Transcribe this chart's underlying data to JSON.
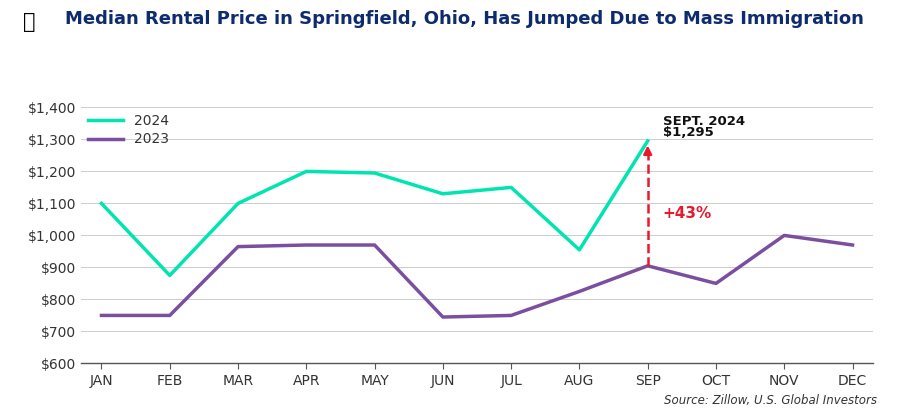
{
  "title": "Median Rental Price in Springfield, Ohio, Has Jumped Due to Mass Immigration",
  "title_color": "#0d2b6e",
  "title_fontsize": 13.0,
  "months": [
    "JAN",
    "FEB",
    "MAR",
    "APR",
    "MAY",
    "JUN",
    "JUL",
    "AUG",
    "SEP",
    "OCT",
    "NOV",
    "DEC"
  ],
  "data_2024": [
    1100,
    875,
    1100,
    1200,
    1195,
    1130,
    1150,
    955,
    1295,
    null,
    null,
    null
  ],
  "data_2023": [
    750,
    750,
    965,
    970,
    970,
    745,
    750,
    825,
    905,
    850,
    1000,
    970
  ],
  "color_2024": "#00e5b0",
  "color_2023": "#7b4fa0",
  "ylim": [
    600,
    1400
  ],
  "yticks": [
    600,
    700,
    800,
    900,
    1000,
    1100,
    1200,
    1300,
    1400
  ],
  "ytick_labels": [
    "$600",
    "$700",
    "$800",
    "$900",
    "$1,000",
    "$1,100",
    "$1,200",
    "$1,300",
    "$1,400"
  ],
  "annotation_label_top": "SEPT. 2024",
  "annotation_label_price": "$1,295",
  "annotation_pct": "+43%",
  "annotation_pct_color": "#e8192c",
  "arrow_color": "#e8192c",
  "source_text": "Source: Zillow, U.S. Global Investors",
  "legend_2024": "2024",
  "legend_2023": "2023",
  "background_color": "#ffffff",
  "line_width": 2.5,
  "sep_2024_idx": 8,
  "sep_2023_value": 905
}
